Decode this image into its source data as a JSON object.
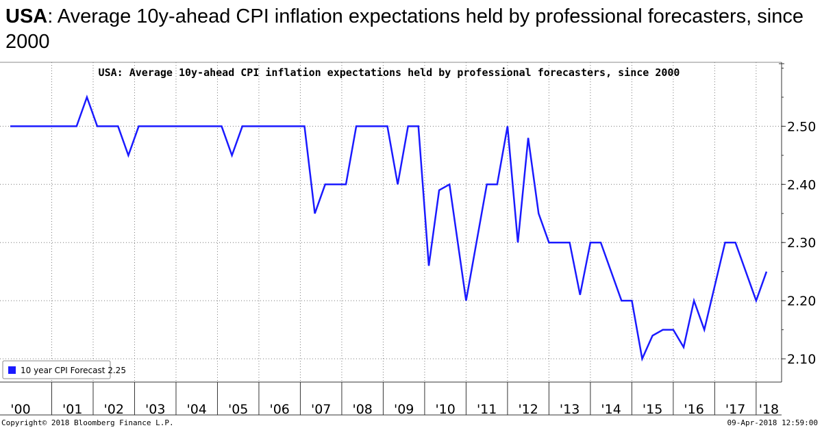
{
  "heading": {
    "country": "USA",
    "rest": ": Average 10y-ahead CPI inflation expectations held by professional forecasters, since 2000"
  },
  "chart_data": {
    "type": "line",
    "title": "USA: Average 10y-ahead CPI inflation expectations held by professional forecasters, since 2000",
    "xlabel": "",
    "ylabel": "",
    "x_tick_labels": [
      "'00",
      "'01",
      "'02",
      "'03",
      "'04",
      "'05",
      "'06",
      "'07",
      "'08",
      "'09",
      "'10",
      "'11",
      "'12",
      "'13",
      "'14",
      "'15",
      "'16",
      "'17",
      "'18"
    ],
    "y_ticks": [
      2.1,
      2.2,
      2.3,
      2.4,
      2.5
    ],
    "ylim": [
      2.06,
      2.61
    ],
    "xlim": [
      2000.0,
      2018.3
    ],
    "y_axis_side": "right",
    "grid": true,
    "legend_position": "bottom-left",
    "series": [
      {
        "name": "10 year CPI Forecast",
        "last_value": "2.25",
        "color": "#1a1aff",
        "points": [
          [
            2000.0,
            2.5
          ],
          [
            2001.6,
            2.5
          ],
          [
            2001.85,
            2.55
          ],
          [
            2002.1,
            2.5
          ],
          [
            2002.6,
            2.5
          ],
          [
            2002.85,
            2.45
          ],
          [
            2003.1,
            2.5
          ],
          [
            2005.1,
            2.5
          ],
          [
            2005.35,
            2.45
          ],
          [
            2005.6,
            2.5
          ],
          [
            2007.1,
            2.5
          ],
          [
            2007.35,
            2.35
          ],
          [
            2007.6,
            2.4
          ],
          [
            2008.1,
            2.4
          ],
          [
            2008.35,
            2.5
          ],
          [
            2009.1,
            2.5
          ],
          [
            2009.35,
            2.4
          ],
          [
            2009.6,
            2.5
          ],
          [
            2009.85,
            2.5
          ],
          [
            2010.1,
            2.26
          ],
          [
            2010.35,
            2.39
          ],
          [
            2010.6,
            2.4
          ],
          [
            2011.0,
            2.2
          ],
          [
            2011.5,
            2.4
          ],
          [
            2011.75,
            2.4
          ],
          [
            2012.0,
            2.5
          ],
          [
            2012.25,
            2.3
          ],
          [
            2012.5,
            2.48
          ],
          [
            2012.75,
            2.35
          ],
          [
            2013.0,
            2.3
          ],
          [
            2013.5,
            2.3
          ],
          [
            2013.75,
            2.21
          ],
          [
            2014.0,
            2.3
          ],
          [
            2014.25,
            2.3
          ],
          [
            2014.75,
            2.2
          ],
          [
            2015.0,
            2.2
          ],
          [
            2015.25,
            2.1
          ],
          [
            2015.5,
            2.14
          ],
          [
            2015.75,
            2.15
          ],
          [
            2016.0,
            2.15
          ],
          [
            2016.25,
            2.12
          ],
          [
            2016.5,
            2.2
          ],
          [
            2016.75,
            2.15
          ],
          [
            2017.25,
            2.3
          ],
          [
            2017.5,
            2.3
          ],
          [
            2018.0,
            2.2
          ],
          [
            2018.25,
            2.25
          ]
        ]
      }
    ]
  },
  "footer": {
    "copyright": "Copyright© 2018 Bloomberg Finance L.P.",
    "timestamp": "09-Apr-2018 12:59:00"
  }
}
